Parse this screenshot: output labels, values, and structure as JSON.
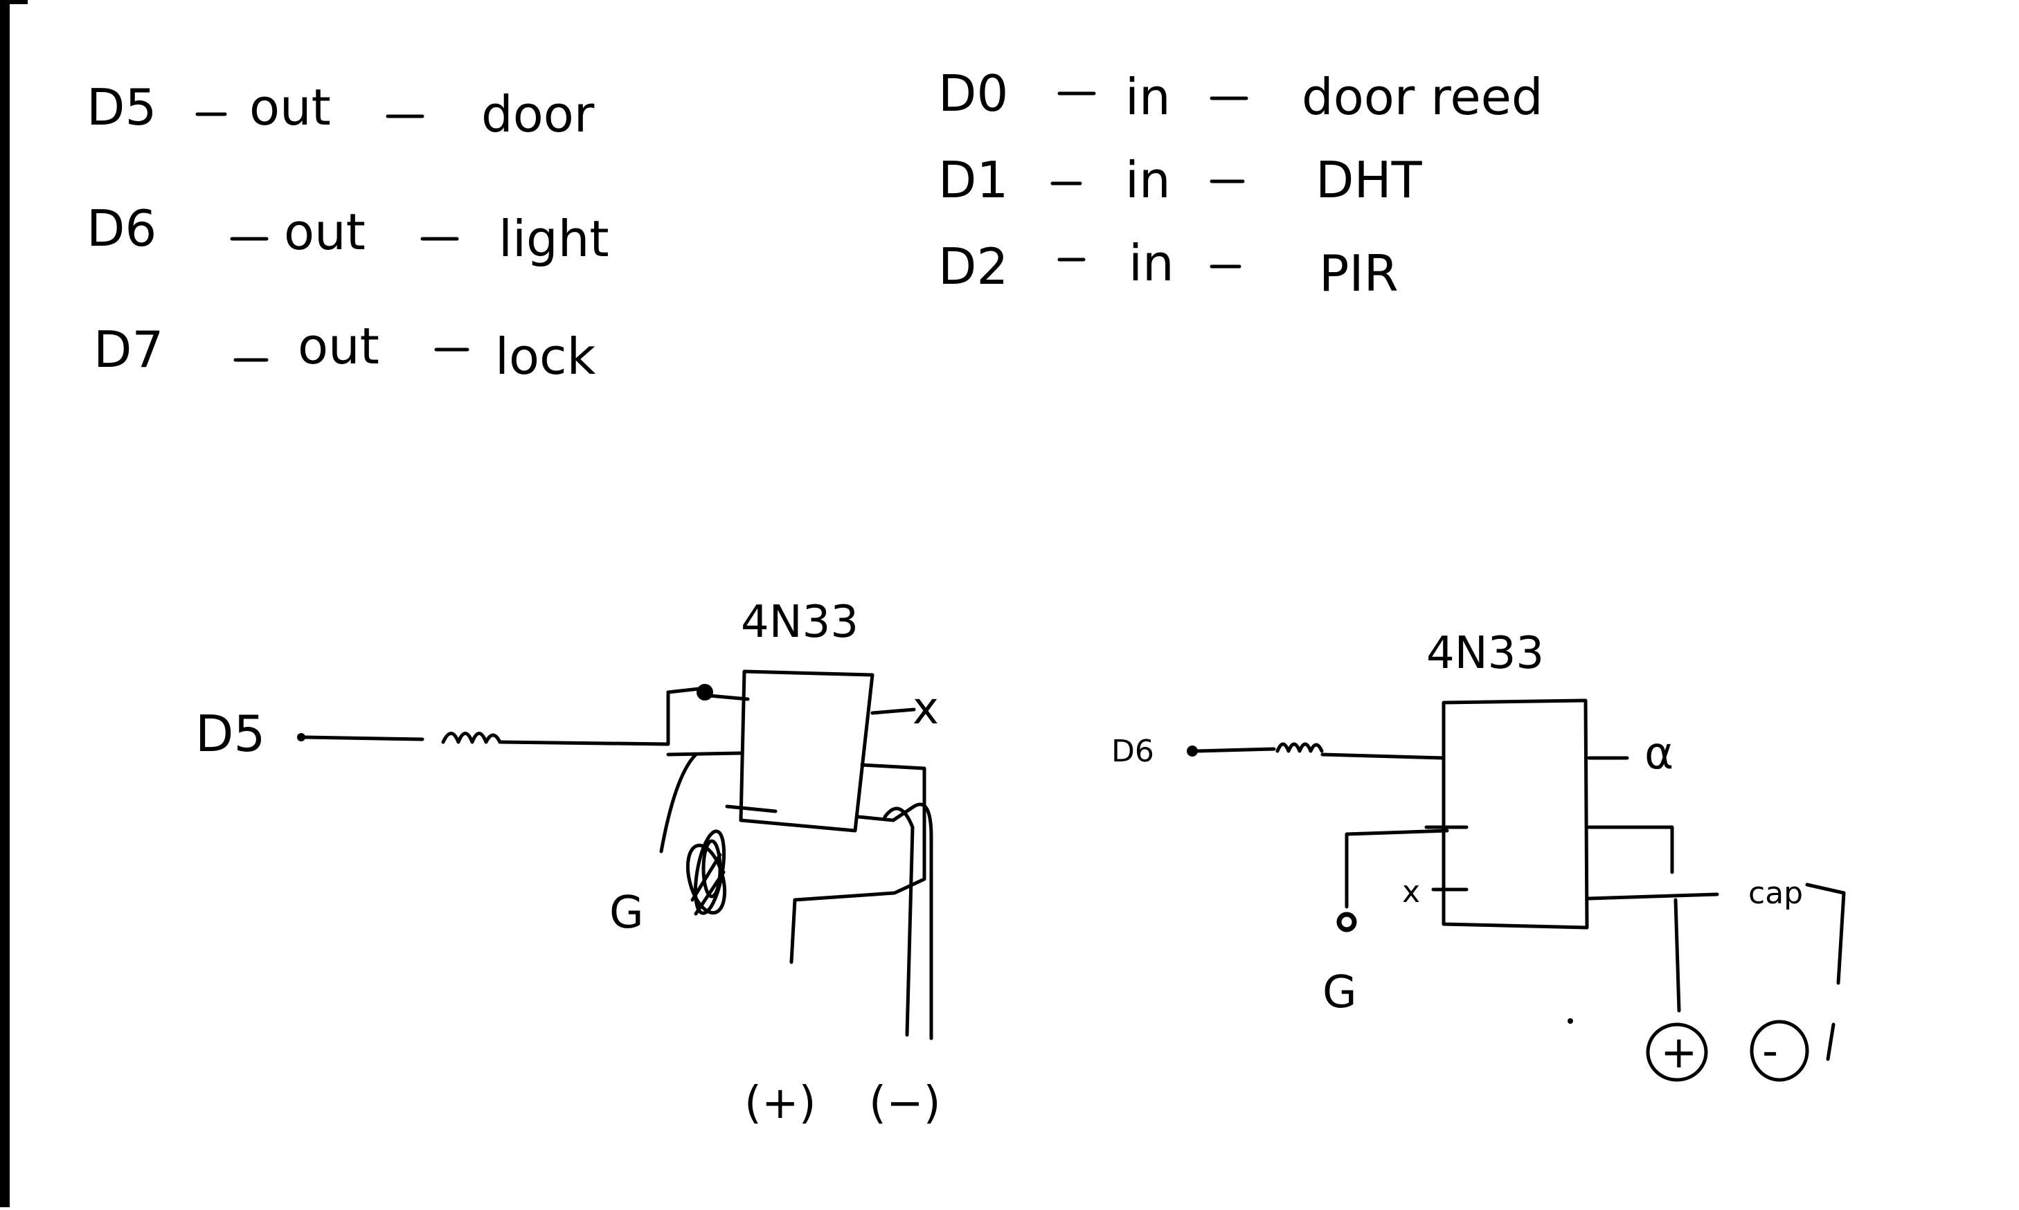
{
  "pin_map": {
    "outputs": [
      {
        "pin": "D5",
        "dir": "out",
        "name": "door"
      },
      {
        "pin": "D6",
        "dir": "out",
        "name": "light"
      },
      {
        "pin": "D7",
        "dir": "out",
        "name": "lock"
      }
    ],
    "inputs": [
      {
        "pin": "D0",
        "dir": "in",
        "name": "door reed"
      },
      {
        "pin": "D1",
        "dir": "in",
        "name": "DHT"
      },
      {
        "pin": "D2",
        "dir": "in",
        "name": "PIR"
      }
    ]
  },
  "circuit_left": {
    "chip": "4N33",
    "input_pin": "D5",
    "ground": "G",
    "nc_mark": "x",
    "out_plus": "(+)",
    "out_minus": "(−)"
  },
  "circuit_right": {
    "chip": "4N33",
    "input_pin": "D6",
    "ground": "G",
    "nc_mark": "x",
    "nc_mark_2": "α",
    "cap": "cap",
    "out_plus": "(+)",
    "out_minus": "(-)"
  }
}
